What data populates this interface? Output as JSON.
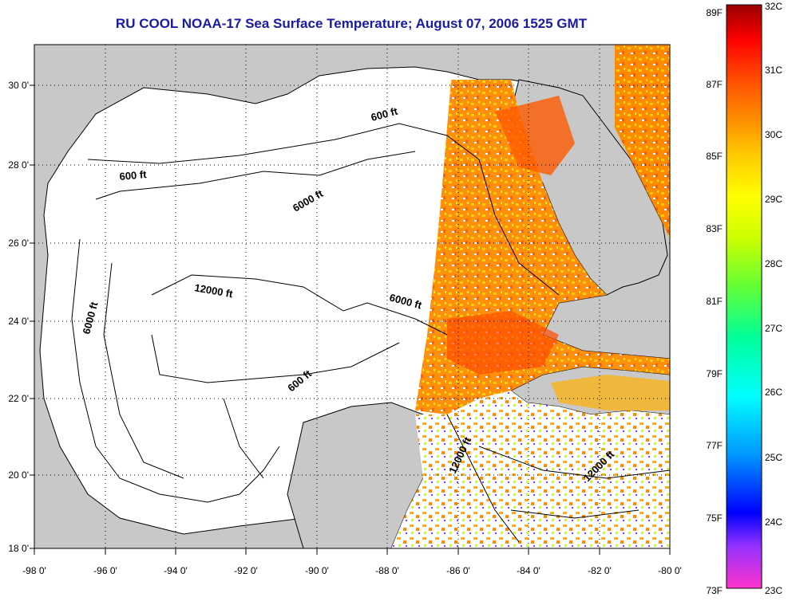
{
  "title": "RU COOL  NOAA-17  Sea Surface Temperature;  August 07, 2006 1525 GMT",
  "colors": {
    "land": "#c8c8c8",
    "ocean": "#ffffff",
    "title": "#1a1aa8",
    "contour": "#000000",
    "grid": "#000000"
  },
  "axes": {
    "x_ticks": [
      "-98 0'",
      "-96 0'",
      "-94 0'",
      "-92 0'",
      "-90 0'",
      "-88 0'",
      "-86 0'",
      "-84 0'",
      "-82 0'",
      "-80 0'"
    ],
    "y_ticks": [
      "30 0'",
      "28 0'",
      "26 0'",
      "24 0'",
      "22 0'",
      "20 0'",
      "18 0'"
    ]
  },
  "contour_labels": [
    {
      "text": "600 ft"
    },
    {
      "text": "600 ft"
    },
    {
      "text": "6000 ft"
    },
    {
      "text": "12000 ft"
    },
    {
      "text": "6000 ft"
    },
    {
      "text": "6000 ft"
    },
    {
      "text": "600 ft"
    },
    {
      "text": "12000 ft"
    },
    {
      "text": "12000 ft"
    }
  ],
  "colorbar": {
    "fahrenheit": [
      "89F",
      "87F",
      "85F",
      "83F",
      "81F",
      "79F",
      "77F",
      "75F",
      "73F"
    ],
    "celsius": [
      "32C",
      "31C",
      "30C",
      "29C",
      "28C",
      "27C",
      "26C",
      "25C",
      "24C",
      "23C"
    ],
    "stops": [
      "#ff33cc",
      "#9933ff",
      "#0000ff",
      "#0099ff",
      "#00ffff",
      "#00ff99",
      "#66ff33",
      "#ccff00",
      "#ffff00",
      "#ffcc00",
      "#ff8800",
      "#ff4400",
      "#ff0000",
      "#990000"
    ]
  }
}
